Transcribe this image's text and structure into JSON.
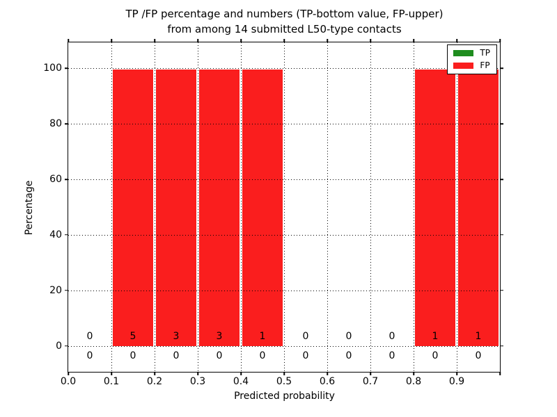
{
  "figure": {
    "title_line1": "TP /FP percentage and numbers (TP-bottom value, FP-upper)",
    "title_line2": "from among 14 submitted L50-type contacts",
    "xlabel": "Predicted probability",
    "ylabel": "Percentage"
  },
  "legend": {
    "position": "upper-right",
    "items": [
      {
        "label": "TP",
        "color": "#1e8c1e"
      },
      {
        "label": "FP",
        "color": "#fa1e1e"
      }
    ]
  },
  "chart_data": {
    "type": "bar",
    "stacked": true,
    "title": "TP /FP percentage and numbers (TP-bottom value, FP-upper) from among 14 submitted L50-type contacts",
    "xlabel": "Predicted probability",
    "ylabel": "Percentage",
    "bin_starts": [
      0.0,
      0.1,
      0.2,
      0.3,
      0.4,
      0.5,
      0.6,
      0.7,
      0.8,
      0.9
    ],
    "bin_width": 0.1,
    "series": [
      {
        "name": "TP",
        "color": "#1e8c1e",
        "percentages": [
          0,
          0,
          0,
          0,
          0,
          0,
          0,
          0,
          0,
          0
        ],
        "counts": [
          0,
          0,
          0,
          0,
          0,
          0,
          0,
          0,
          0,
          0
        ]
      },
      {
        "name": "FP",
        "color": "#fa1e1e",
        "percentages": [
          0,
          100,
          100,
          100,
          100,
          0,
          0,
          0,
          100,
          100
        ],
        "counts": [
          0,
          5,
          3,
          3,
          1,
          0,
          0,
          0,
          1,
          1
        ]
      }
    ],
    "xticks": [
      {
        "v": 0.0,
        "label": "0.0"
      },
      {
        "v": 0.1,
        "label": "0.1"
      },
      {
        "v": 0.2,
        "label": "0.2"
      },
      {
        "v": 0.3,
        "label": "0.3"
      },
      {
        "v": 0.4,
        "label": "0.4"
      },
      {
        "v": 0.5,
        "label": "0.5"
      },
      {
        "v": 0.6,
        "label": "0.6"
      },
      {
        "v": 0.7,
        "label": "0.7"
      },
      {
        "v": 0.8,
        "label": "0.8"
      },
      {
        "v": 0.9,
        "label": "0.9"
      },
      {
        "v": 1.0,
        "label": ""
      }
    ],
    "yticks": [
      0,
      20,
      40,
      60,
      80,
      100
    ],
    "xlim": [
      0.0,
      1.0
    ],
    "ylim": [
      -9.3,
      109.3
    ],
    "grid": "dotted",
    "annotation_note": "TP counts below zero line, FP counts above zero line"
  }
}
